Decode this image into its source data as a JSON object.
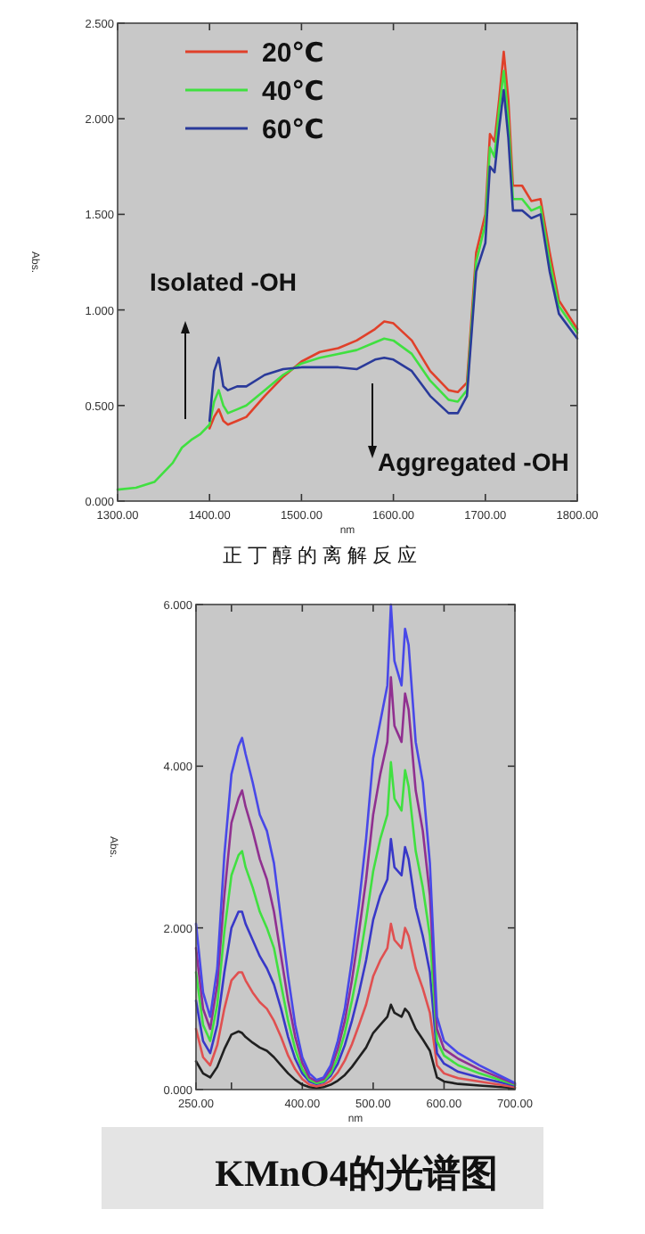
{
  "chart_data": [
    {
      "type": "line",
      "xlabel": "nm",
      "ylabel": "Abs.",
      "xlim": [
        1300,
        1800
      ],
      "ylim": [
        0,
        2.5
      ],
      "xticks": [
        {
          "value": 1300,
          "label": "1300.00"
        },
        {
          "value": 1400,
          "label": "1400.00"
        },
        {
          "value": 1500,
          "label": "1500.00"
        },
        {
          "value": 1600,
          "label": "1600.00"
        },
        {
          "value": 1700,
          "label": "1700.00"
        },
        {
          "value": 1800,
          "label": "1800.00"
        }
      ],
      "yticks": [
        {
          "value": 0,
          "label": "0.000"
        },
        {
          "value": 0.5,
          "label": "0.500"
        },
        {
          "value": 1,
          "label": "1.000"
        },
        {
          "value": 1.5,
          "label": "1.500"
        },
        {
          "value": 2,
          "label": "2.000"
        },
        {
          "value": 2.5,
          "label": "2.500"
        }
      ],
      "legend": "top left",
      "x": [
        1300,
        1320,
        1340,
        1360,
        1370,
        1380,
        1390,
        1400,
        1405,
        1410,
        1415,
        1420,
        1430,
        1440,
        1460,
        1480,
        1500,
        1520,
        1540,
        1560,
        1580,
        1590,
        1600,
        1620,
        1640,
        1660,
        1670,
        1680,
        1690,
        1700,
        1705,
        1710,
        1715,
        1720,
        1725,
        1730,
        1740,
        1750,
        1760,
        1770,
        1780,
        1800
      ],
      "series": [
        {
          "name": "20℃",
          "color": "#e0402a",
          "values": [
            null,
            null,
            null,
            null,
            null,
            null,
            null,
            0.38,
            0.44,
            0.48,
            0.42,
            0.4,
            0.42,
            0.44,
            0.55,
            0.65,
            0.73,
            0.78,
            0.8,
            0.84,
            0.9,
            0.94,
            0.93,
            0.84,
            0.68,
            0.58,
            0.57,
            0.62,
            1.3,
            1.5,
            1.92,
            1.88,
            2.1,
            2.35,
            2.1,
            1.65,
            1.65,
            1.57,
            1.58,
            1.3,
            1.05,
            0.9
          ]
        },
        {
          "name": "40℃",
          "color": "#40e040",
          "values": [
            0.06,
            0.07,
            0.1,
            0.2,
            0.28,
            0.32,
            0.35,
            0.4,
            0.52,
            0.58,
            0.5,
            0.46,
            0.48,
            0.5,
            0.58,
            0.66,
            0.72,
            0.75,
            0.77,
            0.79,
            0.83,
            0.85,
            0.84,
            0.77,
            0.63,
            0.53,
            0.52,
            0.58,
            1.25,
            1.45,
            1.85,
            1.8,
            2.05,
            2.25,
            2.0,
            1.58,
            1.58,
            1.52,
            1.54,
            1.25,
            1.02,
            0.88
          ]
        },
        {
          "name": "60℃",
          "color": "#2a3a9a",
          "values": [
            null,
            null,
            null,
            null,
            null,
            null,
            null,
            0.42,
            0.68,
            0.75,
            0.6,
            0.58,
            0.6,
            0.6,
            0.66,
            0.69,
            0.7,
            0.7,
            0.7,
            0.69,
            0.74,
            0.75,
            0.74,
            0.68,
            0.55,
            0.46,
            0.46,
            0.55,
            1.2,
            1.35,
            1.75,
            1.72,
            1.95,
            2.15,
            1.9,
            1.52,
            1.52,
            1.48,
            1.5,
            1.2,
            0.98,
            0.85
          ]
        }
      ],
      "annotations": [
        "Isolated -OH",
        "Aggregated -OH",
        "正丁醇的离解反应"
      ]
    },
    {
      "type": "line",
      "xlabel": "nm",
      "ylabel": "Abs.",
      "xlim": [
        250,
        700
      ],
      "ylim": [
        0,
        6
      ],
      "xticks": [
        {
          "value": 250,
          "label": "250.00"
        },
        {
          "value": 300,
          "label": null
        },
        {
          "value": 400,
          "label": "400.00"
        },
        {
          "value": 500,
          "label": "500.00"
        },
        {
          "value": 600,
          "label": "600.00"
        },
        {
          "value": 700,
          "label": "700.00"
        }
      ],
      "yticks": [
        {
          "value": 0,
          "label": "0.000"
        },
        {
          "value": 2,
          "label": "2.000"
        },
        {
          "value": 4,
          "label": "4.000"
        },
        {
          "value": 6,
          "label": "6.000"
        }
      ],
      "x": [
        250,
        260,
        270,
        280,
        290,
        300,
        310,
        315,
        320,
        330,
        340,
        350,
        360,
        370,
        380,
        390,
        400,
        410,
        420,
        430,
        440,
        450,
        460,
        470,
        480,
        490,
        500,
        510,
        520,
        525,
        530,
        540,
        545,
        550,
        560,
        570,
        580,
        590,
        600,
        620,
        650,
        700
      ],
      "series": [
        {
          "color": "#202020",
          "values": [
            0.35,
            0.2,
            0.15,
            0.28,
            0.5,
            0.68,
            0.72,
            0.7,
            0.65,
            0.58,
            0.52,
            0.48,
            0.4,
            0.3,
            0.2,
            0.12,
            0.06,
            0.03,
            0.02,
            0.03,
            0.06,
            0.11,
            0.18,
            0.28,
            0.4,
            0.52,
            0.7,
            0.8,
            0.9,
            1.05,
            0.95,
            0.9,
            1.0,
            0.95,
            0.75,
            0.62,
            0.48,
            0.15,
            0.1,
            0.07,
            0.05,
            0.02
          ]
        },
        {
          "color": "#e05050",
          "values": [
            0.75,
            0.4,
            0.3,
            0.55,
            1.0,
            1.35,
            1.45,
            1.45,
            1.35,
            1.2,
            1.08,
            1.0,
            0.85,
            0.65,
            0.42,
            0.25,
            0.13,
            0.06,
            0.04,
            0.06,
            0.11,
            0.21,
            0.36,
            0.56,
            0.8,
            1.05,
            1.4,
            1.6,
            1.75,
            2.05,
            1.85,
            1.75,
            2.0,
            1.9,
            1.5,
            1.25,
            0.95,
            0.3,
            0.2,
            0.14,
            0.1,
            0.03
          ]
        },
        {
          "color": "#3838c8",
          "values": [
            1.1,
            0.6,
            0.45,
            0.8,
            1.45,
            2.0,
            2.2,
            2.2,
            2.05,
            1.85,
            1.65,
            1.5,
            1.3,
            1.0,
            0.65,
            0.38,
            0.2,
            0.1,
            0.07,
            0.09,
            0.17,
            0.32,
            0.55,
            0.85,
            1.2,
            1.6,
            2.1,
            2.4,
            2.6,
            3.1,
            2.75,
            2.65,
            3.0,
            2.85,
            2.25,
            1.9,
            1.45,
            0.45,
            0.32,
            0.22,
            0.15,
            0.05
          ]
        },
        {
          "color": "#40e040",
          "values": [
            1.45,
            0.8,
            0.6,
            1.05,
            1.95,
            2.65,
            2.9,
            2.95,
            2.75,
            2.5,
            2.2,
            2.0,
            1.75,
            1.3,
            0.85,
            0.5,
            0.25,
            0.12,
            0.08,
            0.1,
            0.2,
            0.4,
            0.7,
            1.1,
            1.55,
            2.1,
            2.7,
            3.1,
            3.4,
            4.05,
            3.6,
            3.45,
            3.95,
            3.75,
            2.95,
            2.5,
            1.9,
            0.6,
            0.42,
            0.3,
            0.2,
            0.06
          ]
        },
        {
          "color": "#903090",
          "values": [
            1.75,
            1.0,
            0.75,
            1.3,
            2.4,
            3.3,
            3.6,
            3.7,
            3.5,
            3.2,
            2.85,
            2.6,
            2.2,
            1.65,
            1.1,
            0.65,
            0.33,
            0.15,
            0.1,
            0.13,
            0.25,
            0.5,
            0.85,
            1.35,
            1.95,
            2.6,
            3.4,
            3.9,
            4.3,
            5.1,
            4.5,
            4.3,
            4.9,
            4.7,
            3.7,
            3.2,
            2.4,
            0.75,
            0.5,
            0.38,
            0.25,
            0.07
          ]
        },
        {
          "color": "#4848e8",
          "values": [
            2.05,
            1.2,
            0.9,
            1.5,
            2.9,
            3.9,
            4.25,
            4.35,
            4.15,
            3.8,
            3.4,
            3.2,
            2.8,
            2.1,
            1.4,
            0.8,
            0.4,
            0.2,
            0.12,
            0.15,
            0.3,
            0.6,
            1.0,
            1.6,
            2.3,
            3.1,
            4.1,
            4.55,
            5.0,
            6.0,
            5.3,
            5.0,
            5.7,
            5.5,
            4.3,
            3.8,
            2.8,
            0.9,
            0.6,
            0.45,
            0.3,
            0.08
          ]
        }
      ],
      "annotations": [
        "KMnO4的光谱图"
      ]
    }
  ]
}
